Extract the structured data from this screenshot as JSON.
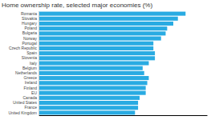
{
  "chart_data": {
    "type": "bar",
    "orientation": "horizontal",
    "title": "Home ownership rate, selected major economies (%)",
    "categories": [
      "Romania",
      "Slovakia",
      "Hungary",
      "Poland",
      "Bulgaria",
      "Norway",
      "Portugal",
      "Czech Republic",
      "Spain",
      "Slovenia",
      "Italy",
      "Belgium",
      "Netherlands",
      "Greece",
      "Ireland",
      "Finland",
      "EU",
      "Canada",
      "United States",
      "France",
      "United Kingdom"
    ],
    "values": [
      96,
      91,
      88,
      84,
      83,
      80,
      75,
      75,
      76,
      76,
      72,
      68,
      69,
      72,
      71,
      70,
      70,
      66,
      65,
      65,
      63
    ],
    "color": "#29abe2",
    "xlim": [
      0,
      110
    ],
    "xticks": [],
    "grid": false,
    "tick_labels": "y"
  }
}
